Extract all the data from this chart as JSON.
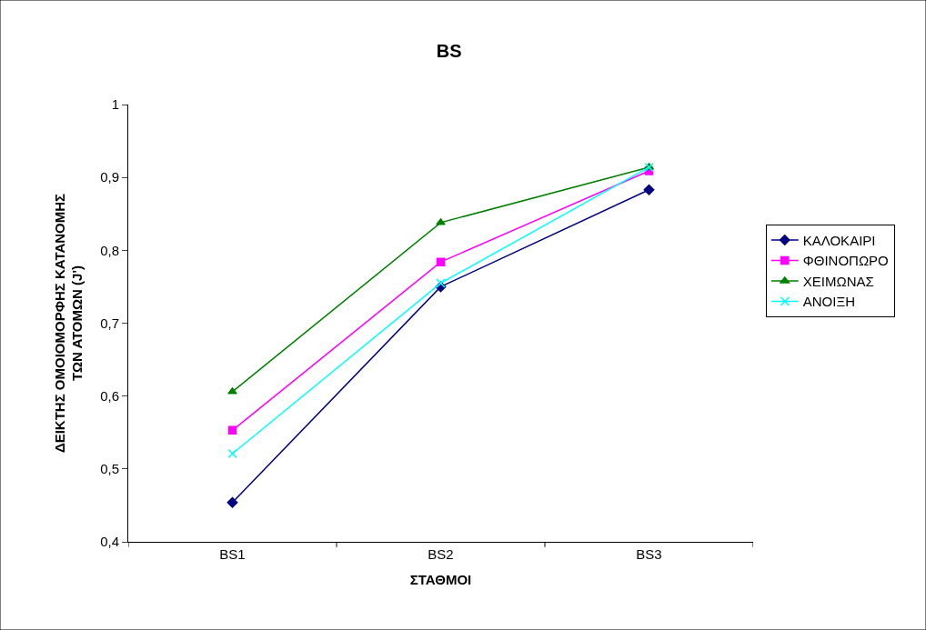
{
  "chart_data": {
    "type": "line",
    "title": "BS",
    "xlabel": "ΣΤΑΘΜΟΙ",
    "ylabel": "ΔΕΙΚΤΗΣ ΟΜΟΙΟΜΟΡΦΗΣ ΚΑΤΑΝΟΜΗΣ\nΤΩΝ ΑΤΟΜΩΝ (J')",
    "categories": [
      "BS1",
      "BS2",
      "BS3"
    ],
    "series": [
      {
        "name": "ΚΑΛΟΚΑΙΡΙ",
        "color": "#000080",
        "marker": "diamond",
        "values": [
          0.454,
          0.75,
          0.883
        ]
      },
      {
        "name": "ΦΘΙΝΟΠΩΡΟ",
        "color": "#ff00ff",
        "marker": "square",
        "values": [
          0.553,
          0.784,
          0.909
        ]
      },
      {
        "name": "ΧΕΙΜΩΝΑΣ",
        "color": "#008000",
        "marker": "triangle",
        "values": [
          0.606,
          0.838,
          0.914
        ]
      },
      {
        "name": "ΑΝΟΙΞΗ",
        "color": "#00ffff",
        "marker": "cross",
        "values": [
          0.521,
          0.755,
          0.914
        ]
      }
    ],
    "ylim": [
      0.4,
      1
    ],
    "yticks": [
      {
        "value": 0.4,
        "label": "0,4"
      },
      {
        "value": 0.5,
        "label": "0,5"
      },
      {
        "value": 0.6,
        "label": "0,6"
      },
      {
        "value": 0.7,
        "label": "0,7"
      },
      {
        "value": 0.8,
        "label": "0,8"
      },
      {
        "value": 0.9,
        "label": "0,9"
      },
      {
        "value": 1,
        "label": "1"
      }
    ],
    "legend": "right"
  }
}
